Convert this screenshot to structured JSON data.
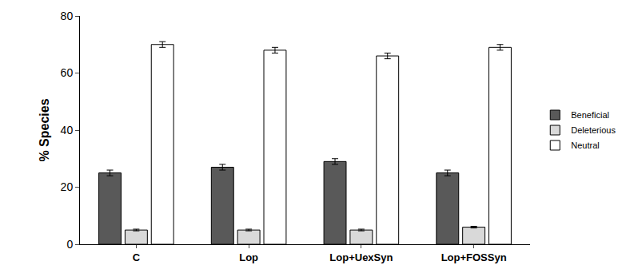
{
  "chart_data": {
    "type": "bar",
    "categories": [
      "C",
      "Lop",
      "Lop+UexSyn",
      "Lop+FOSSyn"
    ],
    "series": [
      {
        "name": "Beneficial",
        "color": "#595959",
        "values": [
          25,
          27,
          29,
          25
        ],
        "errors": [
          1,
          1,
          1,
          1
        ]
      },
      {
        "name": "Deleterious",
        "color": "#d9d9d9",
        "values": [
          5,
          5,
          5,
          6
        ],
        "errors": [
          0.3,
          0.3,
          0.3,
          0.3
        ]
      },
      {
        "name": "Neutral",
        "color": "#ffffff",
        "values": [
          70,
          68,
          66,
          69
        ],
        "errors": [
          1,
          1,
          1,
          1
        ]
      }
    ],
    "y_label": "% Species",
    "ylim": [
      0,
      80
    ],
    "yticks": [
      0,
      20,
      40,
      60,
      80
    ],
    "grid": false,
    "legend": "right"
  }
}
